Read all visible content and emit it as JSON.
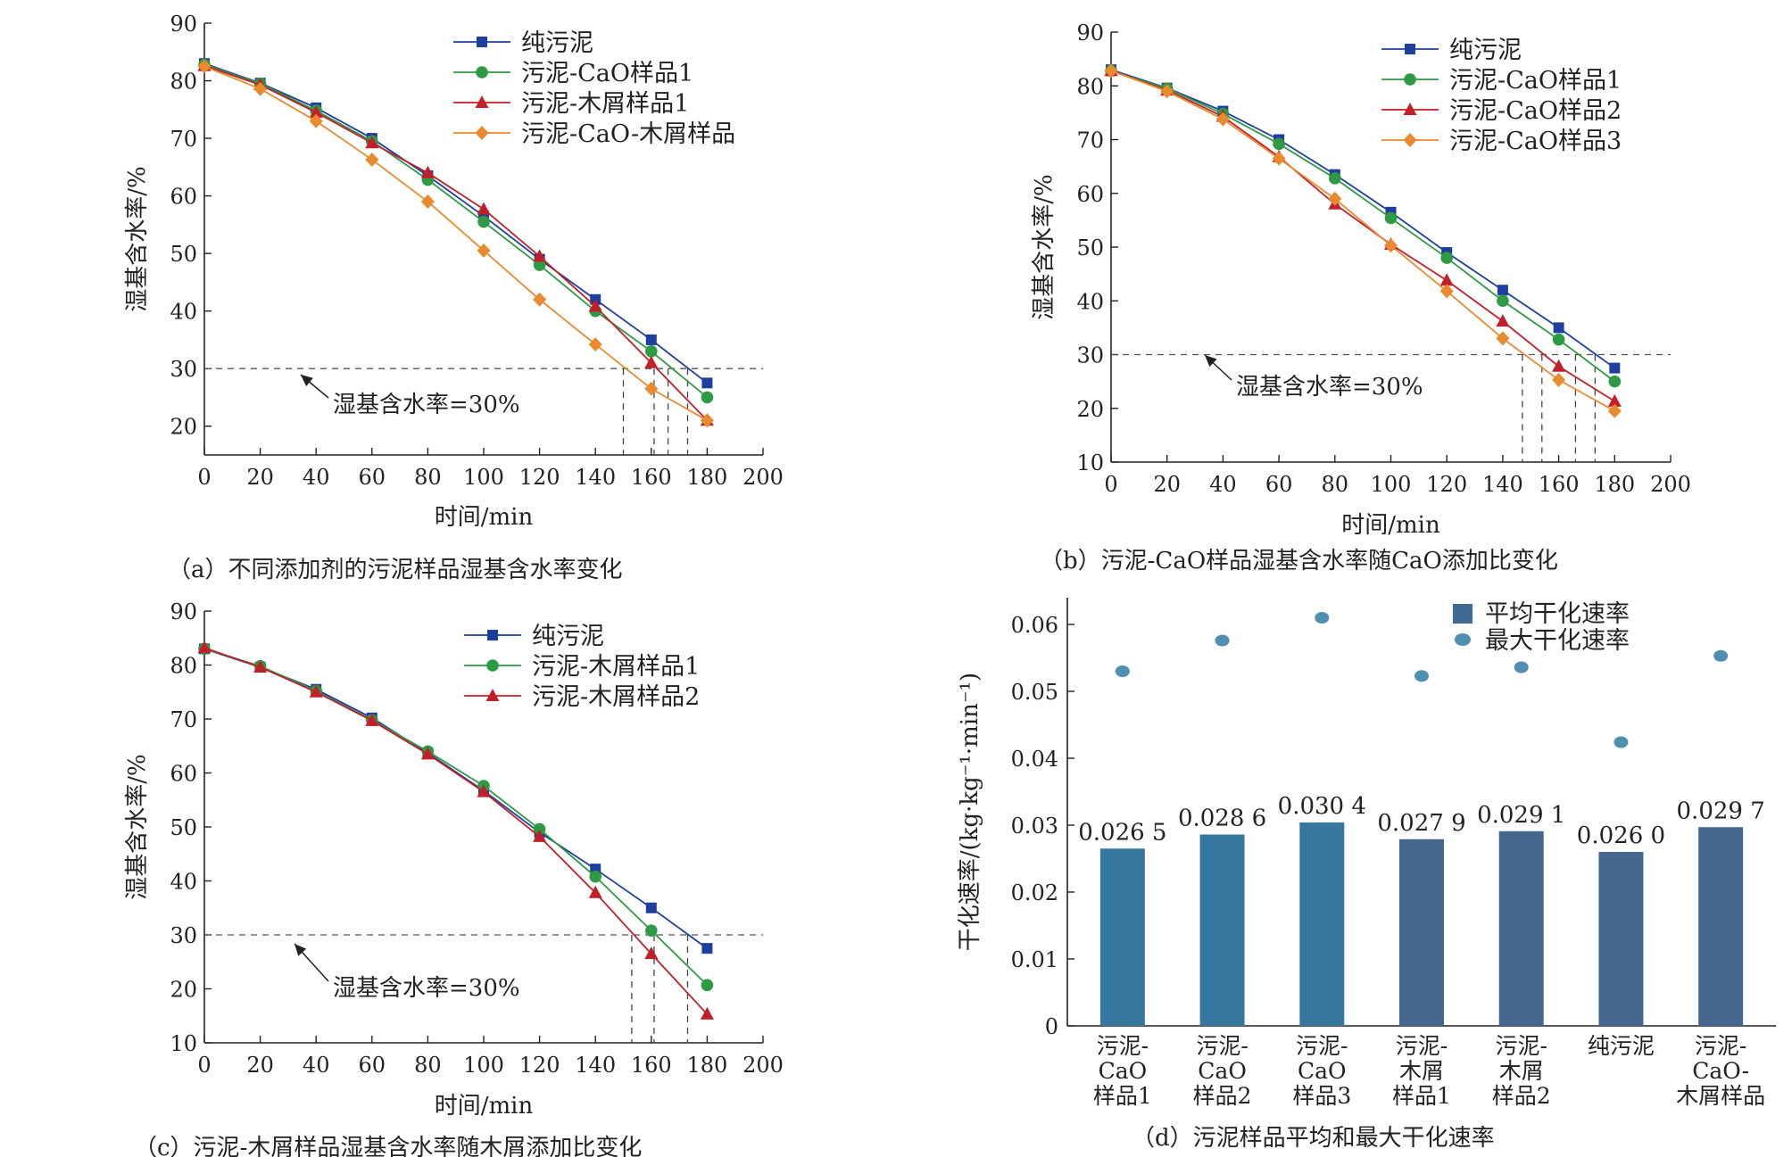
{
  "colors": {
    "pure": "#1f3f9e",
    "green": "#2e9a44",
    "red": "#c1202a",
    "orange": "#e98a2e",
    "bar_a": "#3677a0",
    "bar_b": "#44688f",
    "dot": "#4f8fb0"
  },
  "chart_data": [
    {
      "type": "line",
      "caption": "（a）不同添加剂的污泥样品湿基含水率变化",
      "xlabel": "时间/min",
      "ylabel": "湿基含水率/%",
      "xlim": [
        0,
        200
      ],
      "ylim": [
        15,
        90
      ],
      "xticks": [
        0,
        20,
        40,
        60,
        80,
        100,
        120,
        140,
        160,
        180,
        200
      ],
      "yticks": [
        20,
        30,
        40,
        50,
        60,
        70,
        80,
        90
      ],
      "x": [
        0,
        20,
        40,
        60,
        80,
        100,
        120,
        140,
        160,
        180
      ],
      "threshold": 30,
      "annotation": "湿基含水率=30%",
      "legend_position": "top-right",
      "crossings": [
        150,
        161,
        166,
        173
      ],
      "series": [
        {
          "name": "纯污泥",
          "marker": "square",
          "color": "#1f3f9e",
          "values": [
            83,
            79.6,
            75.3,
            70,
            63.5,
            56.5,
            49,
            42,
            35,
            27.5
          ]
        },
        {
          "name": "污泥-CaO样品1",
          "marker": "circle",
          "color": "#2e9a44",
          "values": [
            82.8,
            79.5,
            74.8,
            69.5,
            62.8,
            55.5,
            48,
            40,
            33,
            25
          ]
        },
        {
          "name": "污泥-木屑样品1",
          "marker": "triangle",
          "color": "#c1202a",
          "values": [
            82.6,
            79.3,
            74.5,
            69.2,
            64,
            57.7,
            49.5,
            40.8,
            31,
            21
          ]
        },
        {
          "name": "污泥-CaO-木屑样品",
          "marker": "diamond",
          "color": "#e98a2e",
          "values": [
            82.5,
            78.6,
            73,
            66.3,
            59,
            50.5,
            42,
            34.2,
            26.5,
            21
          ]
        }
      ]
    },
    {
      "type": "line",
      "caption": "（b）污泥-CaO样品湿基含水率随CaO添加比变化",
      "xlabel": "时间/min",
      "ylabel": "湿基含水率/%",
      "xlim": [
        0,
        200
      ],
      "ylim": [
        10,
        90
      ],
      "xticks": [
        0,
        20,
        40,
        60,
        80,
        100,
        120,
        140,
        160,
        180,
        200
      ],
      "yticks": [
        10,
        20,
        30,
        40,
        50,
        60,
        70,
        80,
        90
      ],
      "x": [
        0,
        20,
        40,
        60,
        80,
        100,
        120,
        140,
        160,
        180
      ],
      "threshold": 30,
      "annotation": "湿基含水率=30%",
      "legend_position": "top-right",
      "crossings": [
        147,
        154,
        166,
        173
      ],
      "series": [
        {
          "name": "纯污泥",
          "marker": "square",
          "color": "#1f3f9e",
          "values": [
            83,
            79.6,
            75.3,
            70,
            63.5,
            56.5,
            49,
            42,
            35,
            27.5
          ]
        },
        {
          "name": "污泥-CaO样品1",
          "marker": "circle",
          "color": "#2e9a44",
          "values": [
            82.8,
            79.5,
            74.8,
            69.2,
            62.8,
            55.4,
            48,
            40,
            32.8,
            25
          ]
        },
        {
          "name": "污泥-CaO样品2",
          "marker": "triangle",
          "color": "#c1202a",
          "values": [
            82.8,
            79.2,
            74.3,
            66.8,
            58,
            50.5,
            43.8,
            36.2,
            27.8,
            21.3
          ]
        },
        {
          "name": "污泥-CaO样品3",
          "marker": "diamond",
          "color": "#e98a2e",
          "values": [
            82.8,
            79,
            73.8,
            66.5,
            59,
            50.3,
            41.8,
            33,
            25.3,
            19.5
          ]
        }
      ]
    },
    {
      "type": "line",
      "caption": "（c）污泥-木屑样品湿基含水率随木屑添加比变化",
      "xlabel": "时间/min",
      "ylabel": "湿基含水率/%",
      "xlim": [
        0,
        200
      ],
      "ylim": [
        10,
        90
      ],
      "xticks": [
        0,
        20,
        40,
        60,
        80,
        100,
        120,
        140,
        160,
        180,
        200
      ],
      "yticks": [
        10,
        20,
        30,
        40,
        50,
        60,
        70,
        80,
        90
      ],
      "x": [
        0,
        20,
        40,
        60,
        80,
        100,
        120,
        140,
        160,
        180
      ],
      "threshold": 30,
      "annotation": "湿基含水率=30%",
      "legend_position": "top-right",
      "crossings": [
        153,
        161,
        173
      ],
      "series": [
        {
          "name": "纯污泥",
          "marker": "square",
          "color": "#1f3f9e",
          "values": [
            83,
            79.6,
            75.5,
            70.2,
            63.7,
            56.7,
            49,
            42.2,
            35,
            27.5
          ]
        },
        {
          "name": "污泥-木屑样品1",
          "marker": "circle",
          "color": "#2e9a44",
          "values": [
            83,
            79.8,
            75.2,
            69.8,
            64,
            57.6,
            49.6,
            40.8,
            30.8,
            20.7
          ]
        },
        {
          "name": "污泥-木屑样品2",
          "marker": "triangle",
          "color": "#c1202a",
          "values": [
            83.2,
            79.6,
            75,
            69.7,
            63.5,
            56.5,
            48.2,
            37.8,
            26.5,
            15.3
          ]
        }
      ]
    },
    {
      "type": "bar",
      "caption": "（d）污泥样品平均和最大干化速率",
      "ylabel": "干化速率/(kg·kg⁻¹·min⁻¹)",
      "ylim": [
        0,
        0.064
      ],
      "yticks": [
        0,
        0.01,
        0.02,
        0.03,
        0.04,
        0.05,
        0.06
      ],
      "ytick_labels": [
        "0",
        "0.01",
        "0.02",
        "0.03",
        "0.04",
        "0.05",
        "0.06"
      ],
      "legend_position": "top-right",
      "categories": [
        [
          "污泥-",
          "CaO",
          "样品1"
        ],
        [
          "污泥-",
          "CaO",
          "样品2"
        ],
        [
          "污泥-",
          "CaO",
          "样品3"
        ],
        [
          "污泥-",
          "木屑",
          "样品1"
        ],
        [
          "污泥-",
          "木屑",
          "样品2"
        ],
        [
          "纯污泥"
        ],
        [
          "污泥-",
          "CaO-",
          "木屑样品"
        ]
      ],
      "series": [
        {
          "name": "平均干化速率",
          "kind": "bar",
          "values": [
            0.0265,
            0.0286,
            0.0304,
            0.0279,
            0.0291,
            0.026,
            0.0297
          ],
          "labels": [
            "0.026 5",
            "0.028 6",
            "0.030 4",
            "0.027 9",
            "0.029 1",
            "0.026 0",
            "0.029 7"
          ],
          "colors": [
            "#3677a0",
            "#3677a0",
            "#3677a0",
            "#44688f",
            "#44688f",
            "#44688f",
            "#44688f"
          ]
        },
        {
          "name": "最大干化速率",
          "kind": "point",
          "color": "#4f8fb0",
          "values": [
            0.053,
            0.0576,
            0.061,
            0.0523,
            0.0536,
            0.0424,
            0.0553
          ]
        }
      ]
    }
  ]
}
